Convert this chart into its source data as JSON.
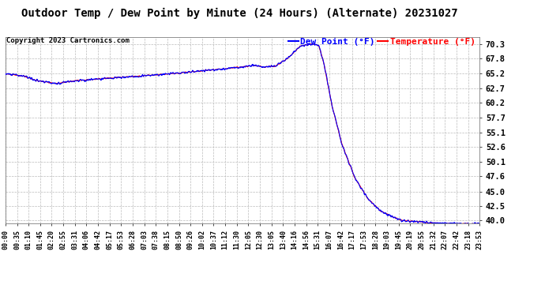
{
  "title": "Outdoor Temp / Dew Point by Minute (24 Hours) (Alternate) 20231027",
  "copyright": "Copyright 2023 Cartronics.com",
  "legend_dew": "Dew Point (°F)",
  "legend_temp": "Temperature (°F)",
  "dew_color": "#0000ff",
  "temp_color": "#ff0000",
  "bg_color": "#ffffff",
  "plot_bg_color": "#ffffff",
  "grid_color": "#bbbbbb",
  "ylim": [
    39.5,
    71.5
  ],
  "yticks": [
    40.0,
    42.5,
    45.0,
    47.6,
    50.1,
    52.6,
    55.1,
    57.7,
    60.2,
    62.7,
    65.2,
    67.8,
    70.3
  ],
  "xtick_labels": [
    "00:00",
    "00:35",
    "01:10",
    "01:45",
    "02:20",
    "02:55",
    "03:31",
    "04:06",
    "04:42",
    "05:17",
    "05:53",
    "06:28",
    "07:03",
    "07:38",
    "08:15",
    "08:50",
    "09:26",
    "10:02",
    "10:37",
    "11:12",
    "11:30",
    "12:05",
    "12:30",
    "13:05",
    "13:40",
    "14:16",
    "14:56",
    "15:31",
    "16:07",
    "16:42",
    "17:17",
    "17:53",
    "18:28",
    "19:03",
    "19:45",
    "20:19",
    "20:55",
    "21:32",
    "22:07",
    "22:42",
    "23:18",
    "23:53"
  ],
  "title_fontsize": 10,
  "copyright_fontsize": 6.5,
  "legend_fontsize": 8,
  "tick_fontsize": 6,
  "ytick_fontsize": 7.5,
  "linewidth": 0.8
}
